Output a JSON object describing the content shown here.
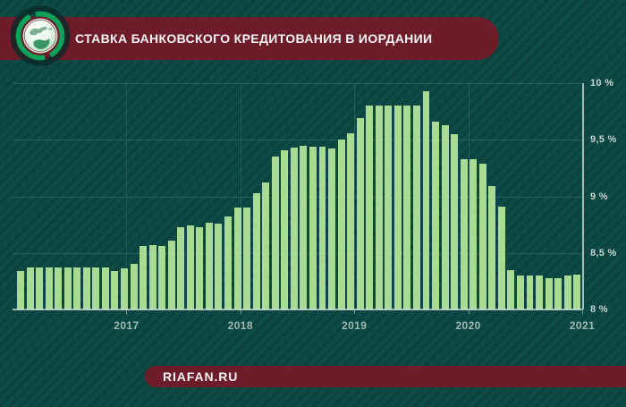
{
  "header": {
    "title": "СТАВКА БАНКОВСКОГО КРЕДИТОВАНИЯ В ИОРДАНИИ",
    "logo": "riafan-globe-logo"
  },
  "footer": {
    "site_label": "RIAFAN.RU"
  },
  "colors": {
    "background": "#0d4a46",
    "background_stripe": "#0a3f3b",
    "banner": "#6e1c2a",
    "bar": "#a9da93",
    "grid": "#adc7c2",
    "axis": "#d6e5e1",
    "y_label": "#c6d4d1",
    "x_label": "#9fb9b3",
    "logo_ring_green": "#0ba158"
  },
  "chart_data": {
    "type": "bar",
    "title": "СТАВКА БАНКОВСКОГО КРЕДИТОВАНИЯ В ИОРДАНИИ",
    "xlabel": "",
    "ylabel": "%",
    "ylim": [
      8,
      10
    ],
    "grid": true,
    "legend": "none",
    "y_axis_side": "right",
    "y_tick_labels": [
      "10 %",
      "9,5 %",
      "9 %",
      "8,5 %",
      "8 %"
    ],
    "y_tick_values": [
      10,
      9.5,
      9,
      8.5,
      8
    ],
    "x_tick_labels": [
      "2017",
      "2018",
      "2019",
      "2020",
      "2021"
    ],
    "categories": [
      "2016-01",
      "2016-02",
      "2016-03",
      "2016-04",
      "2016-05",
      "2016-06",
      "2016-07",
      "2016-08",
      "2016-09",
      "2016-10",
      "2016-11",
      "2016-12",
      "2017-01",
      "2017-02",
      "2017-03",
      "2017-04",
      "2017-05",
      "2017-06",
      "2017-07",
      "2017-08",
      "2017-09",
      "2017-10",
      "2017-11",
      "2017-12",
      "2018-01",
      "2018-02",
      "2018-03",
      "2018-04",
      "2018-05",
      "2018-06",
      "2018-07",
      "2018-08",
      "2018-09",
      "2018-10",
      "2018-11",
      "2018-12",
      "2019-01",
      "2019-02",
      "2019-03",
      "2019-04",
      "2019-05",
      "2019-06",
      "2019-07",
      "2019-08",
      "2019-09",
      "2019-10",
      "2019-11",
      "2019-12",
      "2020-01",
      "2020-02",
      "2020-03",
      "2020-04",
      "2020-05",
      "2020-06",
      "2020-07",
      "2020-08",
      "2020-09",
      "2020-10",
      "2020-11",
      "2020-12"
    ],
    "series": [
      {
        "name": "Ставка банковского кредитования, %",
        "values": [
          8.34,
          8.37,
          8.37,
          8.37,
          8.37,
          8.37,
          8.37,
          8.37,
          8.37,
          8.37,
          8.34,
          8.36,
          8.4,
          8.56,
          8.57,
          8.56,
          8.61,
          8.73,
          8.74,
          8.73,
          8.77,
          8.76,
          8.82,
          8.9,
          8.9,
          9.03,
          9.12,
          9.35,
          9.41,
          9.43,
          9.45,
          9.44,
          9.44,
          9.42,
          9.5,
          9.56,
          9.69,
          9.8,
          9.8,
          9.8,
          9.8,
          9.8,
          9.8,
          9.93,
          9.66,
          9.63,
          9.55,
          9.33,
          9.33,
          9.29,
          9.09,
          8.91,
          8.35,
          8.3,
          8.3,
          8.3,
          8.28,
          8.28,
          8.3,
          8.31
        ]
      }
    ]
  }
}
